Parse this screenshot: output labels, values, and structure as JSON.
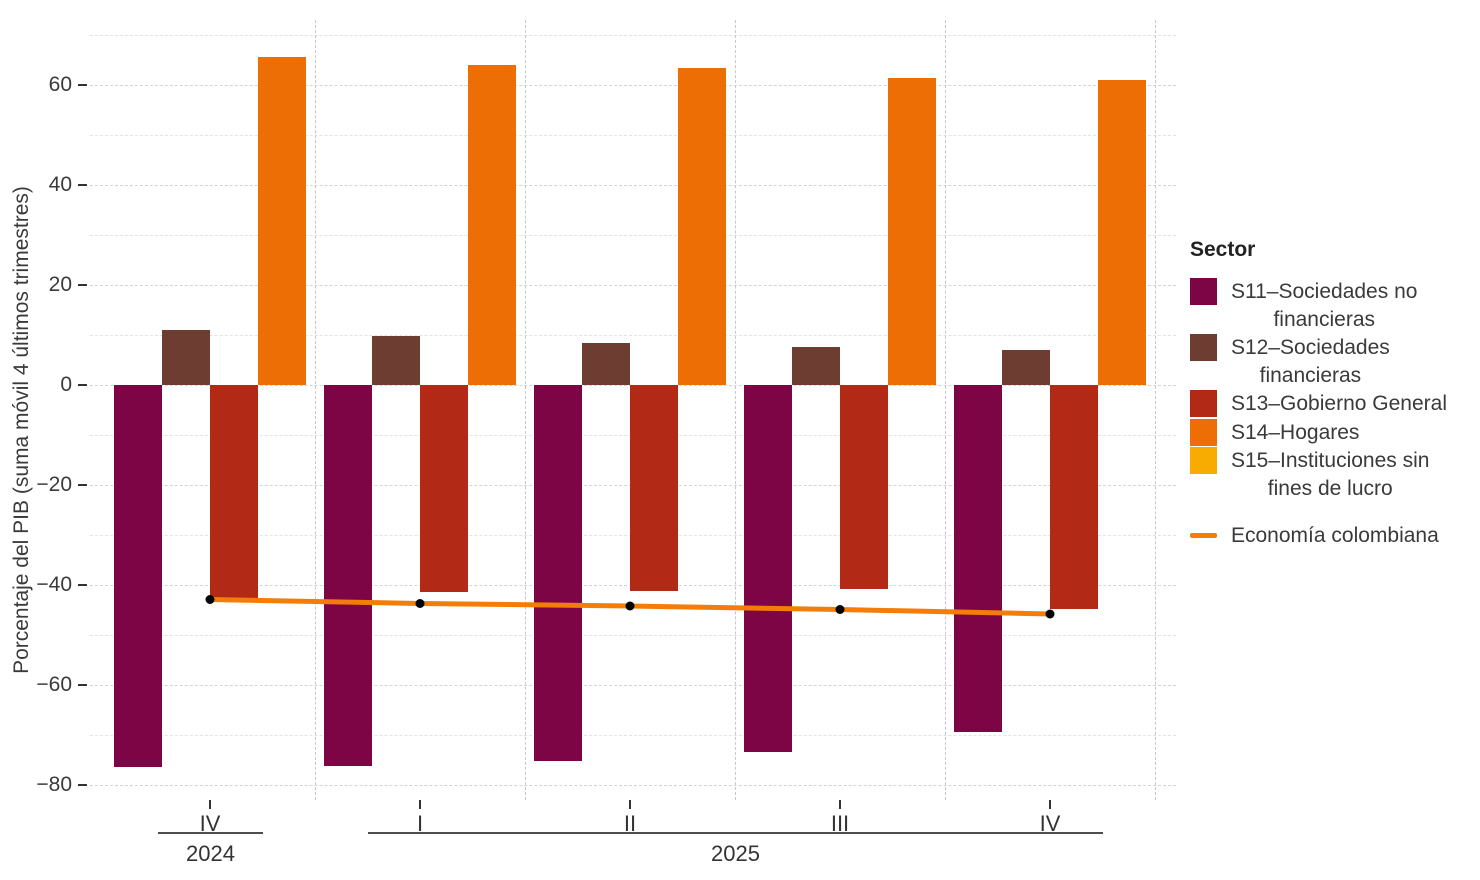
{
  "y_axis": {
    "title": "Porcentaje del PIB (suma móvil 4 últimos trimestres)",
    "tick_values": [
      60,
      40,
      20,
      0,
      -20,
      -40,
      -60,
      -80
    ],
    "tick_labels": [
      "60",
      "40",
      "20",
      "0",
      "−20",
      "−40",
      "−60",
      "−80"
    ]
  },
  "x_axis": {
    "quarter_labels": [
      "IV",
      "I",
      "II",
      "III",
      "IV"
    ],
    "year_groups": [
      {
        "label": "2024",
        "from": 0,
        "to": 0
      },
      {
        "label": "2025",
        "from": 1,
        "to": 4
      }
    ]
  },
  "legend": {
    "title": "Sector",
    "items": [
      {
        "label": "S11–Sociedades no\nfinancieras",
        "color": "#7D0545",
        "type": "square"
      },
      {
        "label": "S12–Sociedades\nfinancieras",
        "color": "#6E3D31",
        "type": "square"
      },
      {
        "label": "S13–Gobierno General",
        "color": "#B22A16",
        "type": "square"
      },
      {
        "label": "S14–Hogares",
        "color": "#EC6E05",
        "type": "square"
      },
      {
        "label": "S15–Instituciones sin\nfines de lucro",
        "color": "#F8AB00",
        "type": "square"
      },
      {
        "label": "Economía colombiana",
        "color": "#F47D09",
        "type": "line"
      }
    ]
  },
  "chart_data": {
    "type": "bar",
    "subtype": "grouped bars with line overlay",
    "categories": [
      "IV 2024",
      "I 2025",
      "II 2025",
      "III 2025",
      "IV 2025"
    ],
    "series": [
      {
        "name": "S11–Sociedades no financieras",
        "color": "#7D0545",
        "values": [
          -76.3,
          -76.2,
          -75.1,
          -73.4,
          -69.4
        ]
      },
      {
        "name": "S12–Sociedades financieras",
        "color": "#6E3D31",
        "values": [
          11.0,
          9.9,
          8.5,
          7.7,
          7.1
        ]
      },
      {
        "name": "S13–Gobierno General",
        "color": "#B22A16",
        "values": [
          -43.3,
          -41.3,
          -41.2,
          -40.7,
          -44.8
        ]
      },
      {
        "name": "S14–Hogares",
        "color": "#EC6E05",
        "values": [
          65.7,
          64.0,
          63.5,
          61.5,
          61.1
        ]
      },
      {
        "name": "S15–Instituciones sin fines de lucro",
        "color": "#F8AB00",
        "values": [
          0,
          0,
          0,
          0,
          0
        ]
      }
    ],
    "line_series": {
      "name": "Economía colombiana",
      "color": "#F47D09",
      "point_color": "#000000",
      "values": [
        -42.9,
        -43.7,
        -44.2,
        -44.9,
        -45.8
      ]
    },
    "title": "",
    "xlabel": "",
    "ylabel": "Porcentaje del PIB (suma móvil 4 últimos trimestres)",
    "ylim": [
      -83,
      73
    ],
    "ytick_step_major": 20,
    "ytick_step_minor": 10,
    "grid": "dashed, horizontal every 10 units, vertical separators between quarter groups",
    "legend_position": "right"
  }
}
